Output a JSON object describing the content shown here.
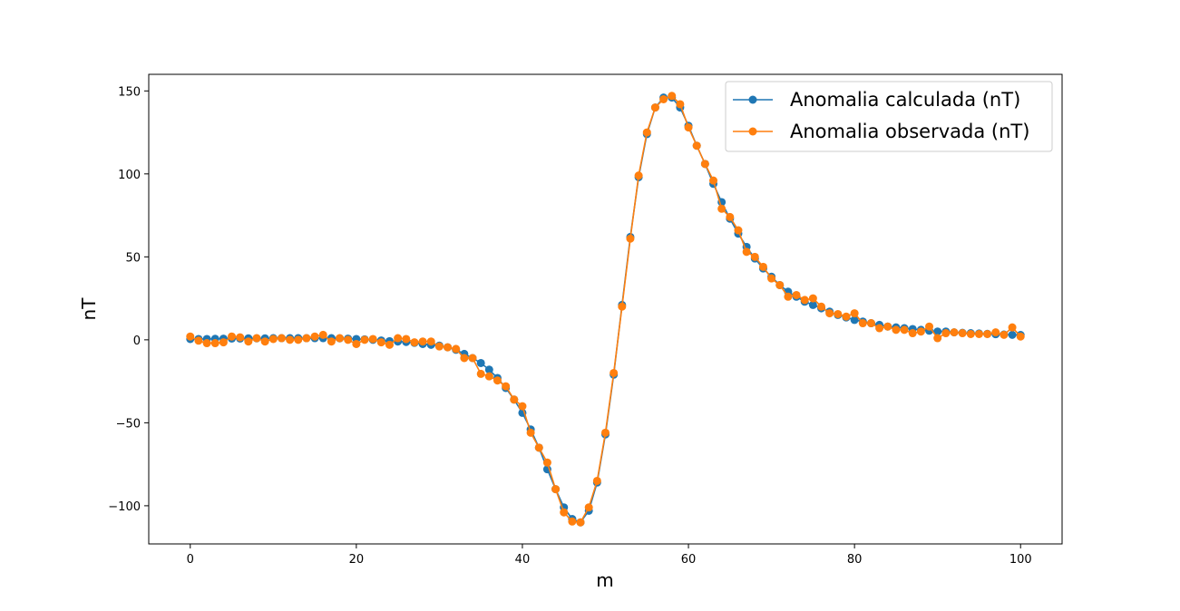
{
  "chart_data": {
    "type": "line",
    "xlabel": "m",
    "ylabel": "nT",
    "xlim": [
      -5,
      105
    ],
    "ylim": [
      -123,
      160
    ],
    "xticks": [
      0,
      20,
      40,
      60,
      80,
      100
    ],
    "yticks": [
      -100,
      -50,
      0,
      50,
      100,
      150
    ],
    "ytick_labels": [
      "−100",
      "−50",
      "0",
      "50",
      "100",
      "150"
    ],
    "grid": false,
    "legend_position": "top-right",
    "series": [
      {
        "name": "Anomalia calculada (nT)",
        "color": "#1f77b4",
        "marker": "circle",
        "x": [
          0,
          1,
          2,
          3,
          4,
          5,
          6,
          7,
          8,
          9,
          10,
          11,
          12,
          13,
          14,
          15,
          16,
          17,
          18,
          19,
          20,
          21,
          22,
          23,
          24,
          25,
          26,
          27,
          28,
          29,
          30,
          31,
          32,
          33,
          34,
          35,
          36,
          37,
          38,
          39,
          40,
          41,
          42,
          43,
          44,
          45,
          46,
          47,
          48,
          49,
          50,
          51,
          52,
          53,
          54,
          55,
          56,
          57,
          58,
          59,
          60,
          61,
          62,
          63,
          64,
          65,
          66,
          67,
          68,
          69,
          70,
          71,
          72,
          73,
          74,
          75,
          76,
          77,
          78,
          79,
          80,
          81,
          82,
          83,
          84,
          85,
          86,
          87,
          88,
          89,
          90,
          91,
          92,
          93,
          94,
          95,
          96,
          97,
          98,
          99,
          100
        ],
        "y": [
          0.5,
          0.5,
          0.5,
          0.6,
          0.7,
          0.8,
          0.8,
          0.9,
          0.9,
          0.9,
          1.0,
          1.0,
          1.0,
          1.0,
          1.0,
          1.0,
          1.0,
          1.0,
          0.9,
          0.7,
          0.5,
          0.3,
          0.0,
          -0.4,
          -0.8,
          -1.0,
          -1.3,
          -1.8,
          -2.5,
          -3,
          -3.5,
          -4.5,
          -6,
          -8.5,
          -11,
          -14,
          -18,
          -23,
          -29,
          -36,
          -44,
          -54,
          -65,
          -78,
          -90,
          -101,
          -108,
          -110,
          -103,
          -86,
          -57,
          -21,
          21,
          62,
          98,
          124,
          140,
          146,
          146,
          140,
          129,
          117,
          106,
          94,
          83,
          73,
          64,
          56,
          49,
          43,
          38,
          33,
          29,
          26,
          23,
          21,
          19,
          17,
          15,
          13.5,
          12,
          11,
          10,
          9,
          8,
          7.5,
          7,
          6.5,
          6,
          5.5,
          5,
          5,
          4.5,
          4.2,
          4,
          3.8,
          3.6,
          3.4,
          3.2,
          3,
          2.9
        ]
      },
      {
        "name": "Anomalia observada (nT)",
        "color": "#ff7f0e",
        "marker": "circle",
        "x": [
          0,
          1,
          2,
          3,
          4,
          5,
          6,
          7,
          8,
          9,
          10,
          11,
          12,
          13,
          14,
          15,
          16,
          17,
          18,
          19,
          20,
          21,
          22,
          23,
          24,
          25,
          26,
          27,
          28,
          29,
          30,
          31,
          32,
          33,
          34,
          35,
          36,
          37,
          38,
          39,
          40,
          41,
          42,
          43,
          44,
          45,
          46,
          47,
          48,
          49,
          50,
          51,
          52,
          53,
          54,
          55,
          56,
          57,
          58,
          59,
          60,
          61,
          62,
          63,
          64,
          65,
          66,
          67,
          68,
          69,
          70,
          71,
          72,
          73,
          74,
          75,
          76,
          77,
          78,
          79,
          80,
          81,
          82,
          83,
          84,
          85,
          86,
          87,
          88,
          89,
          90,
          91,
          92,
          93,
          94,
          95,
          96,
          97,
          98,
          99,
          100
        ],
        "y": [
          2,
          -0.5,
          -2,
          -2,
          -1.5,
          2,
          1.5,
          -1,
          1,
          -1,
          0.5,
          1,
          0,
          0,
          1,
          2,
          3,
          -1,
          1,
          0,
          -2.5,
          0,
          0.5,
          -1.5,
          -3,
          1,
          0.5,
          -1.5,
          -1,
          -1,
          -4,
          -4.5,
          -5.5,
          -11,
          -11,
          -20.5,
          -22,
          -24.5,
          -28,
          -36,
          -40,
          -56,
          -65,
          -74,
          -90,
          -104,
          -109.5,
          -110,
          -101,
          -85,
          -56,
          -20,
          20,
          61,
          99,
          125,
          140,
          145,
          147,
          142,
          128,
          117,
          106,
          96,
          79,
          74,
          66,
          53,
          50,
          44,
          37,
          33,
          26,
          27,
          24,
          25,
          20,
          16,
          15.5,
          14,
          16,
          10,
          10,
          7,
          8,
          6,
          6,
          4,
          5,
          8,
          1,
          4,
          4.5,
          4,
          3.5,
          3.5,
          3.5,
          4.5,
          3,
          7.5,
          2
        ]
      }
    ]
  }
}
